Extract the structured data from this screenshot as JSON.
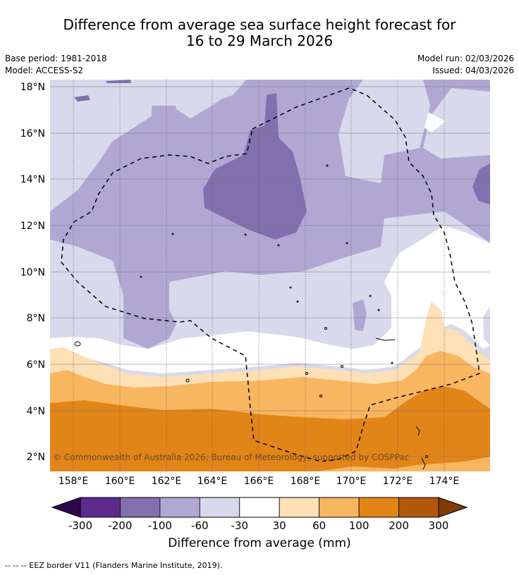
{
  "title": {
    "line1": "Difference from average sea surface height forecast for",
    "line2": "16 to 29 March 2026"
  },
  "meta": {
    "base_period": "Base period: 1981-2018",
    "model": "Model: ACCESS-S2",
    "model_run": "Model run: 02/03/2026",
    "issued": "Issued: 04/03/2026"
  },
  "axes": {
    "lat_labels": [
      "18°N",
      "16°N",
      "14°N",
      "12°N",
      "10°N",
      "8°N",
      "6°N",
      "4°N",
      "2°N"
    ],
    "lon_labels": [
      "158°E",
      "160°E",
      "162°E",
      "164°E",
      "166°E",
      "168°E",
      "170°E",
      "172°E",
      "174°E"
    ]
  },
  "copyright": "© Commonwealth of Australia 2026, Bureau of Meteorology, supported by COSPPac",
  "colorbar": {
    "title": "Difference from average (mm)",
    "ticks": [
      "-300",
      "-200",
      "-100",
      "-60",
      "-30",
      "30",
      "60",
      "100",
      "200",
      "300"
    ],
    "colors": [
      "#2d0a4e",
      "#5b2a8c",
      "#8070ae",
      "#b0a8d3",
      "#d9d9ec",
      "#ffffff",
      "#fde0b6",
      "#f9b660",
      "#e28518",
      "#b3580b",
      "#7f3b08"
    ]
  },
  "footnote": "--  --  -- EEZ border V11 (Flanders Marine Institute, 2019)."
}
